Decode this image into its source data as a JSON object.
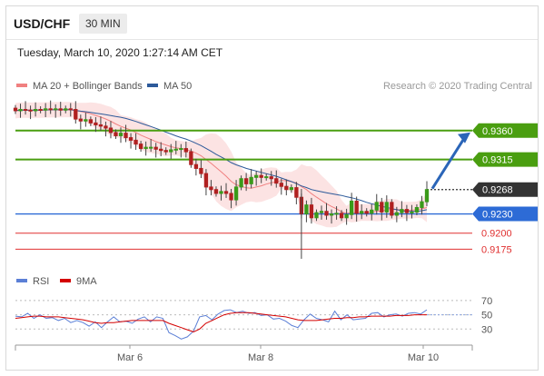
{
  "header": {
    "pair": "USD/CHF",
    "timeframe": "30 MIN"
  },
  "datetime": "Tuesday, March 10, 2020 1:27:14 AM CET",
  "price_legend": [
    {
      "label": "MA 20 + Bollinger Bands",
      "color": "#f08080"
    },
    {
      "label": "MA 50",
      "color": "#2d5a9a"
    }
  ],
  "credit": "Research © 2020 Trading Central",
  "rsi_legend": [
    {
      "label": "RSI",
      "color": "#5b7fd6"
    },
    {
      "label": "9MA",
      "color": "#d40000"
    }
  ],
  "chart_data": [
    {
      "type": "candlestick",
      "title": "USD/CHF",
      "ylim": [
        0.915,
        0.9415
      ],
      "x_ticks": [
        "Mar 6",
        "Mar 8",
        "Mar 10"
      ],
      "levels": [
        {
          "label": "0.9360",
          "value": 0.936,
          "kind": "resistance",
          "color": "#4a9e10"
        },
        {
          "label": "0.9315",
          "value": 0.9315,
          "kind": "resistance",
          "color": "#4a9e10"
        },
        {
          "label": "0.9268",
          "value": 0.9268,
          "kind": "last",
          "color": "#333333"
        },
        {
          "label": "0.9230",
          "value": 0.923,
          "kind": "pivot",
          "color": "#2d6bd6"
        },
        {
          "label": "0.9200",
          "value": 0.92,
          "kind": "support",
          "color": "#e03030"
        },
        {
          "label": "0.9175",
          "value": 0.9175,
          "kind": "support",
          "color": "#e03030"
        }
      ],
      "close_series": [
        0.9391,
        0.9393,
        0.9392,
        0.9391,
        0.9393,
        0.9392,
        0.9394,
        0.9393,
        0.9394,
        0.9392,
        0.9394,
        0.9393,
        0.9378,
        0.9375,
        0.9377,
        0.9372,
        0.9369,
        0.9367,
        0.9364,
        0.9357,
        0.9352,
        0.9356,
        0.9349,
        0.9345,
        0.9339,
        0.9332,
        0.9334,
        0.9334,
        0.9331,
        0.9329,
        0.9327,
        0.933,
        0.9331,
        0.9332,
        0.9327,
        0.9307,
        0.9301,
        0.9293,
        0.9272,
        0.9268,
        0.9262,
        0.9265,
        0.9262,
        0.9252,
        0.9272,
        0.9285,
        0.9277,
        0.9287,
        0.929,
        0.9287,
        0.9288,
        0.9285,
        0.9278,
        0.9273,
        0.9268,
        0.9271,
        0.9256,
        0.923,
        0.9244,
        0.9224,
        0.9232,
        0.9234,
        0.9228,
        0.923,
        0.9231,
        0.9224,
        0.9229,
        0.925,
        0.9231,
        0.9234,
        0.9231,
        0.9236,
        0.9248,
        0.9233,
        0.9248,
        0.9228,
        0.9232,
        0.9237,
        0.9232,
        0.9233,
        0.924,
        0.9249,
        0.9268
      ],
      "forecast_arrow": {
        "from": 0.9268,
        "to": 0.936,
        "direction": "up"
      }
    },
    {
      "type": "line",
      "title": "RSI",
      "ylim": [
        10,
        80
      ],
      "y_ticks": [
        70,
        50,
        30
      ],
      "x_ticks": [
        "Mar 6",
        "Mar 8",
        "Mar 10"
      ],
      "series": [
        {
          "name": "RSI",
          "values": [
            48,
            47,
            52,
            45,
            50,
            45,
            46,
            42,
            45,
            39,
            42,
            39,
            34,
            40,
            32,
            40,
            47,
            40,
            41,
            38,
            44,
            47,
            40,
            47,
            45,
            25,
            21,
            16,
            19,
            27,
            47,
            49,
            43,
            51,
            56,
            57,
            53,
            55,
            52,
            53,
            49,
            50,
            44,
            45,
            41,
            35,
            32,
            43,
            51,
            45,
            43,
            40,
            55,
            43,
            50,
            43,
            44,
            45,
            52,
            53,
            47,
            50,
            51,
            48,
            52,
            53,
            51,
            57
          ]
        },
        {
          "name": "9MA",
          "values": [
            45,
            46,
            47,
            48,
            48,
            47,
            47,
            47,
            46,
            45,
            44,
            43,
            41,
            39,
            38,
            39,
            39,
            40,
            41,
            42,
            42,
            42,
            42,
            42,
            42,
            38,
            35,
            32,
            29,
            26,
            30,
            38,
            42,
            46,
            50,
            52,
            53,
            53,
            53,
            52,
            51,
            50,
            49,
            48,
            47,
            45,
            43,
            42,
            42,
            42,
            43,
            44,
            45,
            45,
            46,
            46,
            47,
            47,
            48,
            48,
            48,
            48,
            49,
            49,
            49,
            50,
            50,
            50
          ]
        }
      ]
    }
  ]
}
